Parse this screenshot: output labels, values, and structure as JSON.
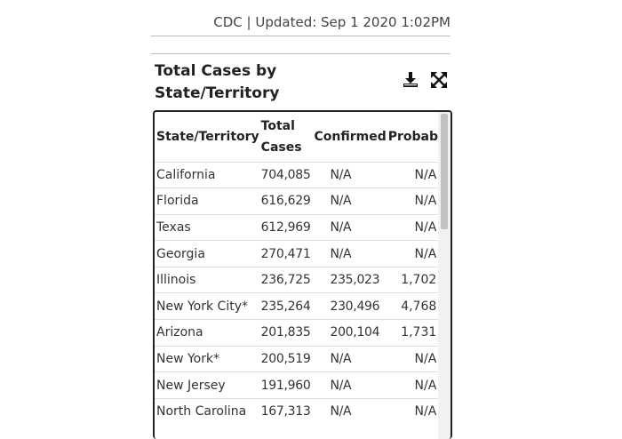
{
  "header": {
    "source_text": "CDC | Updated: Sep 1 2020 1:02PM"
  },
  "widget": {
    "title": "Total Cases by State/Territory",
    "download_icon": "download-icon",
    "expand_icon": "expand-icon"
  },
  "table": {
    "columns": {
      "state": "State/Territory",
      "total": "Total Cases",
      "confirmed": "Confirmed",
      "probable": "Probable"
    },
    "rows": [
      {
        "state": "California",
        "total": "704,085",
        "confirmed": "N/A",
        "probable": "N/A"
      },
      {
        "state": "Florida",
        "total": "616,629",
        "confirmed": "N/A",
        "probable": "N/A"
      },
      {
        "state": "Texas",
        "total": "612,969",
        "confirmed": "N/A",
        "probable": "N/A"
      },
      {
        "state": "Georgia",
        "total": "270,471",
        "confirmed": "N/A",
        "probable": "N/A"
      },
      {
        "state": "Illinois",
        "total": "236,725",
        "confirmed": "235,023",
        "probable": "1,702"
      },
      {
        "state": "New York City*",
        "total": "235,264",
        "confirmed": "230,496",
        "probable": "4,768"
      },
      {
        "state": "Arizona",
        "total": "201,835",
        "confirmed": "200,104",
        "probable": "1,731"
      },
      {
        "state": "New York*",
        "total": "200,519",
        "confirmed": "N/A",
        "probable": "N/A"
      },
      {
        "state": "New Jersey",
        "total": "191,960",
        "confirmed": "N/A",
        "probable": "N/A"
      },
      {
        "state": "North Carolina",
        "total": "167,313",
        "confirmed": "N/A",
        "probable": "N/A"
      }
    ]
  }
}
